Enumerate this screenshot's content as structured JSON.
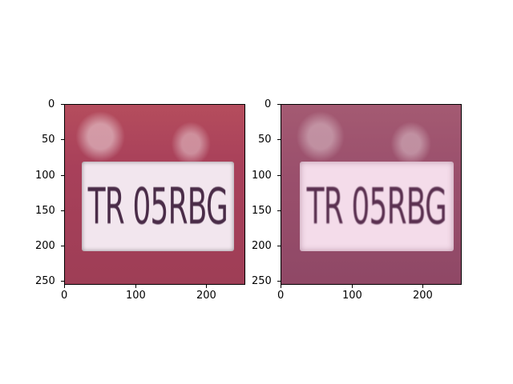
{
  "panels": [
    {
      "name": "left",
      "plate_text": "TR 05RBG",
      "xticks": [
        "0",
        "100",
        "200"
      ],
      "yticks": [
        "0",
        "50",
        "100",
        "150",
        "200",
        "250"
      ]
    },
    {
      "name": "right",
      "plate_text": "TR 05RBG",
      "xticks": [
        "0",
        "100",
        "200"
      ],
      "yticks": [
        "0",
        "50",
        "100",
        "150",
        "200",
        "250"
      ]
    }
  ]
}
